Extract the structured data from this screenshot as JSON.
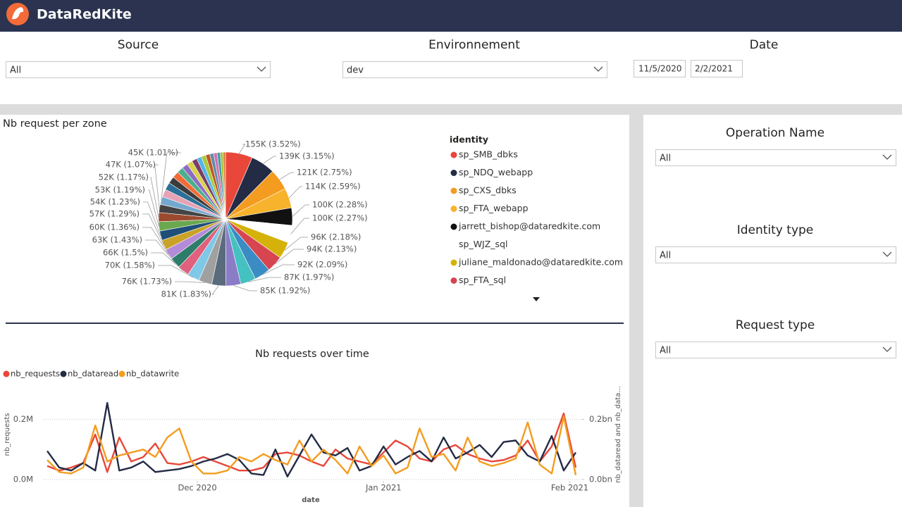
{
  "header": {
    "brand": "DataRedKite"
  },
  "filters": {
    "source": {
      "label": "Source",
      "value": "All"
    },
    "environment": {
      "label": "Environnement",
      "value": "dev"
    },
    "date": {
      "label": "Date",
      "start": "11/5/2020",
      "end": "2/2/2021"
    }
  },
  "side_filters": [
    {
      "label": "Operation Name",
      "value": "All"
    },
    {
      "label": "Identity type",
      "value": "All"
    },
    {
      "label": "Request type",
      "value": "All"
    }
  ],
  "chart_data": [
    {
      "type": "pie",
      "title": "Nb request per zone",
      "legend_title": "identity",
      "categories": [
        "sp_SMB_dbks",
        "sp_NDQ_webapp",
        "sp_CXS_dbks",
        "sp_FTA_webapp",
        "jarrett_bishop@dataredkite.com",
        "sp_WJZ_sql",
        "juliane_maldonado@dataredkite.com",
        "sp_FTA_sql",
        null,
        null,
        null,
        null,
        null,
        null,
        null,
        null,
        null,
        null,
        null,
        null,
        null,
        null,
        null,
        null,
        null,
        null,
        null,
        null,
        null,
        null,
        null,
        null,
        null,
        null,
        null,
        null,
        null,
        null,
        null
      ],
      "values": [
        155000,
        139000,
        121000,
        114000,
        100000,
        100000,
        96000,
        94000,
        92000,
        87000,
        85000,
        81000,
        76000,
        70000,
        66000,
        63000,
        60000,
        57000,
        54000,
        53000,
        52000,
        47000,
        45000,
        44000,
        42000,
        40000,
        38000,
        36000,
        34000,
        32000,
        30000,
        28000,
        26000,
        24000,
        22000,
        20000,
        18000,
        16000,
        14000
      ],
      "value_labels": [
        "155K (3.52%)",
        "139K (3.15%)",
        "121K (2.75%)",
        "114K (2.59%)",
        "100K (2.28%)",
        "100K (2.27%)",
        "96K (2.18%)",
        "94K (2.13%)",
        "92K (2.09%)",
        "87K (1.97%)",
        "85K (1.92%)",
        "81K (1.83%)",
        "76K (1.73%)",
        "70K (1.58%)",
        "66K (1.5%)",
        "63K (1.43%)",
        "60K (1.36%)",
        "57K (1.29%)",
        "54K (1.23%)",
        "53K (1.19%)",
        "52K (1.17%)",
        "47K (1.07%)",
        "45K (1.01%)",
        null,
        null,
        null,
        null,
        null,
        null,
        null,
        null,
        null,
        null,
        null,
        null,
        null,
        null,
        null,
        null
      ],
      "colors": [
        "#e8473a",
        "#232b45",
        "#f39c1f",
        "#f7b32b",
        "#111111",
        "#ffffff",
        "#d4b20a",
        "#d64550",
        "#3b8cc4",
        "#45c1c1",
        "#8b7cc8",
        "#5a6b7b",
        "#a0a0a0",
        "#7fc8e8",
        "#e0607e",
        "#2e7d6b",
        "#b58ad9",
        "#c9a227",
        "#1f4e79",
        "#6aa84f",
        "#9c4a2f",
        "#444444",
        "#74a9cf",
        "#e6a3b5",
        "#2a6f97",
        "#3c3c3c",
        "#f26b38",
        "#4caf8e",
        "#8e6cc2",
        "#d9d24a",
        "#7a3e65",
        "#56b4e9",
        "#a9c93a",
        "#c05621",
        "#5e8fa8",
        "#d46fb1",
        "#39a0a0",
        "#b0bc34",
        "#e07b39"
      ]
    },
    {
      "type": "line",
      "title": "Nb requests over time",
      "categories": [
        null,
        null,
        null,
        null,
        null,
        null,
        null,
        null,
        null,
        null,
        null,
        null,
        null,
        null,
        null,
        null,
        null,
        null,
        null,
        null,
        null,
        null,
        null,
        null,
        null,
        null,
        null,
        null,
        null,
        null,
        null,
        null,
        null,
        null,
        null,
        null,
        null,
        null,
        null,
        null,
        null,
        null,
        null,
        null,
        null
      ],
      "xlim": [
        0,
        44
      ],
      "xticks": [
        {
          "value": 12.5,
          "label": "Dec 2020"
        },
        {
          "value": 28,
          "label": "Jan 2021"
        },
        {
          "value": 43.5,
          "label": "Feb 2021"
        }
      ],
      "xlabel": "date",
      "ylabel": "nb_requests",
      "y2label": "nb_dataread and nb_data...",
      "ylim": [
        0,
        260000
      ],
      "yticks": [
        {
          "value": 0,
          "label": "0.0M"
        },
        {
          "value": 200000,
          "label": "0.2M"
        }
      ],
      "y2lim": [
        0,
        260000000
      ],
      "y2ticks": [
        {
          "value": 0,
          "label": "0.0bn"
        },
        {
          "value": 200000000,
          "label": "0.2bn"
        }
      ],
      "grid": true,
      "series": [
        {
          "name": "nb_requests",
          "color": "#e8473a",
          "values": [
            45000,
            30000,
            40000,
            55000,
            150000,
            25000,
            140000,
            60000,
            75000,
            120000,
            55000,
            50000,
            60000,
            75000,
            60000,
            45000,
            30000,
            30000,
            40000,
            85000,
            90000,
            80000,
            60000,
            45000,
            100000,
            70000,
            60000,
            50000,
            90000,
            130000,
            110000,
            70000,
            60000,
            100000,
            115000,
            85000,
            70000,
            60000,
            65000,
            80000,
            130000,
            60000,
            110000,
            220000,
            40000
          ]
        },
        {
          "name": "nb_dataread",
          "color": "#232b45",
          "axis": "y2",
          "values": [
            95000000,
            40000000,
            30000000,
            55000000,
            30000000,
            255000000,
            30000000,
            40000000,
            60000000,
            25000000,
            30000000,
            35000000,
            45000000,
            60000000,
            70000000,
            85000000,
            65000000,
            20000000,
            15000000,
            100000000,
            10000000,
            80000000,
            150000000,
            90000000,
            80000000,
            105000000,
            30000000,
            45000000,
            110000000,
            50000000,
            75000000,
            95000000,
            60000000,
            140000000,
            70000000,
            90000000,
            115000000,
            75000000,
            125000000,
            130000000,
            80000000,
            60000000,
            145000000,
            30000000,
            90000000
          ]
        },
        {
          "name": "nb_datawrite",
          "color": "#f39c1f",
          "axis": "y2",
          "values": [
            65000000,
            25000000,
            20000000,
            40000000,
            180000000,
            60000000,
            80000000,
            90000000,
            100000000,
            75000000,
            140000000,
            170000000,
            60000000,
            20000000,
            20000000,
            30000000,
            75000000,
            60000000,
            85000000,
            65000000,
            50000000,
            130000000,
            60000000,
            100000000,
            65000000,
            20000000,
            110000000,
            45000000,
            80000000,
            20000000,
            40000000,
            170000000,
            75000000,
            85000000,
            30000000,
            140000000,
            60000000,
            45000000,
            55000000,
            70000000,
            190000000,
            50000000,
            20000000,
            210000000,
            15000000
          ]
        }
      ]
    }
  ]
}
